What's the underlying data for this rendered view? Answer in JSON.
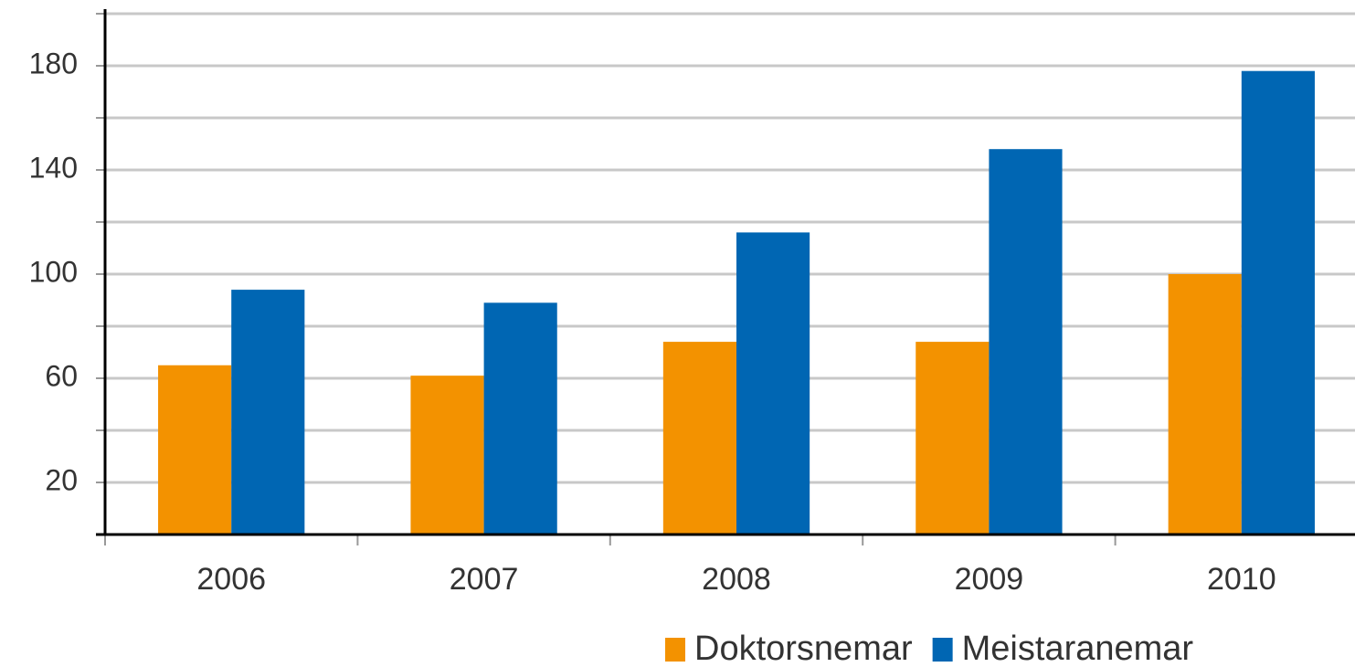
{
  "chart_data": {
    "type": "bar",
    "categories": [
      "2006",
      "2007",
      "2008",
      "2009",
      "2010"
    ],
    "series": [
      {
        "name": "Doktorsnemar",
        "color": "#f39200",
        "values": [
          65,
          61,
          74,
          74,
          100
        ]
      },
      {
        "name": "Meistaranemar",
        "color": "#0066b3",
        "values": [
          94,
          89,
          116,
          148,
          178
        ]
      }
    ],
    "ylim": [
      0,
      200
    ],
    "yticks": [
      20,
      60,
      100,
      140,
      180
    ],
    "minor_yticks": [
      40,
      80,
      120,
      160,
      200
    ],
    "grid": true,
    "legend": "bottom"
  }
}
